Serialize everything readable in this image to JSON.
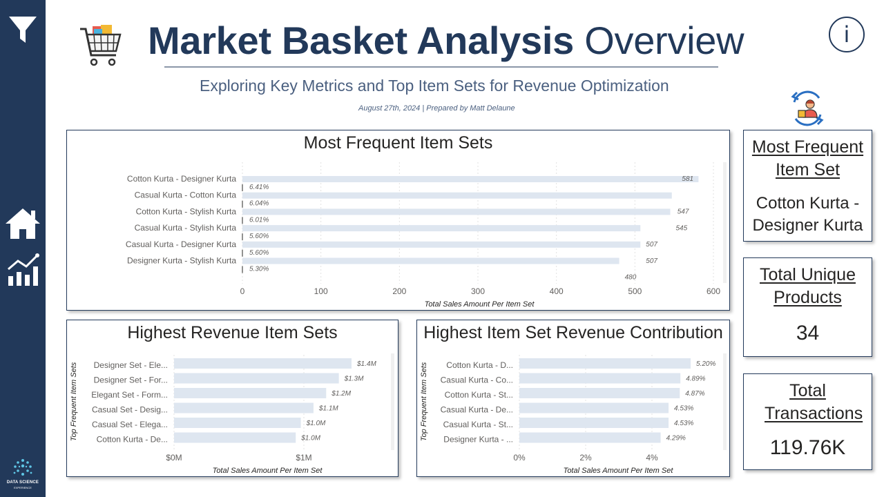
{
  "header": {
    "title_bold": "Market Basket Analysis",
    "title_light": "Overview",
    "subtitle": "Exploring Key Metrics and Top Item Sets for Revenue Optimization",
    "byline": "August 27th, 2024 | Prepared by Matt Delaune"
  },
  "sidebar": {
    "logo_text_1": "DATA SCIENCE",
    "logo_text_2": "EXPERIENCE"
  },
  "info_button": "i",
  "colors": {
    "navy": "#22395a",
    "bar": "#dee6f0"
  },
  "kpis": {
    "frequent_title": "Most Frequent Item Set",
    "frequent_value": "Cotton Kurta - Designer Kurta",
    "products_title": "Total Unique Products",
    "products_value": "34",
    "transactions_title": "Total Transactions",
    "transactions_value": "119.76K"
  },
  "chart_data": [
    {
      "type": "bar",
      "orientation": "horizontal",
      "title": "Most Frequent Item Sets",
      "categories": [
        "Cotton Kurta - Designer Kurta",
        "Casual Kurta - Cotton Kurta",
        "Cotton Kurta - Stylish Kurta",
        "Casual Kurta - Stylish Kurta",
        "Casual Kurta - Designer Kurta",
        "Designer Kurta - Stylish Kurta"
      ],
      "values": [
        581,
        547,
        545,
        507,
        507,
        480
      ],
      "value_labels": [
        "581",
        "547",
        "545",
        "507",
        "507",
        "480"
      ],
      "secondary_labels": [
        "6.41%",
        "6.04%",
        "6.01%",
        "5.60%",
        "5.60%",
        "5.30%"
      ],
      "xticks": [
        "0",
        "100",
        "200",
        "300",
        "400",
        "500",
        "600"
      ],
      "xlim": [
        0,
        600
      ],
      "xlabel": "Total Sales Amount Per Item Set",
      "ylabel": "",
      "grid": true
    },
    {
      "type": "bar",
      "orientation": "horizontal",
      "title": "Highest Revenue Item Sets",
      "categories": [
        "Designer Set - Ele...",
        "Designer Set - For...",
        "Elegant Set - Form...",
        "Casual Set - Desig...",
        "Casual Set - Elega...",
        "Cotton Kurta - De..."
      ],
      "values": [
        1.4,
        1.3,
        1.2,
        1.1,
        1.0,
        0.96
      ],
      "value_labels": [
        "$1.4M",
        "$1.3M",
        "$1.2M",
        "$1.1M",
        "$1.0M",
        "$1.0M"
      ],
      "xticks": [
        "$0M",
        "$1M"
      ],
      "xlim": [
        0,
        1.4
      ],
      "xlabel": "Total Sales Amount Per Item Set",
      "ylabel": "Top Frequent Item Sets",
      "grid": true
    },
    {
      "type": "bar",
      "orientation": "horizontal",
      "title": "Highest Item Set Revenue Contribution",
      "categories": [
        "Cotton Kurta - D...",
        "Casual Kurta - Co...",
        "Cotton Kurta - St...",
        "Casual Kurta - De...",
        "Casual Kurta - St...",
        "Designer Kurta - ..."
      ],
      "values": [
        5.2,
        4.89,
        4.87,
        4.53,
        4.53,
        4.29
      ],
      "value_labels": [
        "5.20%",
        "4.89%",
        "4.87%",
        "4.53%",
        "4.53%",
        "4.29%"
      ],
      "xticks": [
        "0%",
        "2%",
        "4%"
      ],
      "xlim": [
        0,
        5.2
      ],
      "xlabel": "Total Sales Amount Per Item Set",
      "ylabel": "Top Frequent Item Sets",
      "grid": true
    }
  ]
}
